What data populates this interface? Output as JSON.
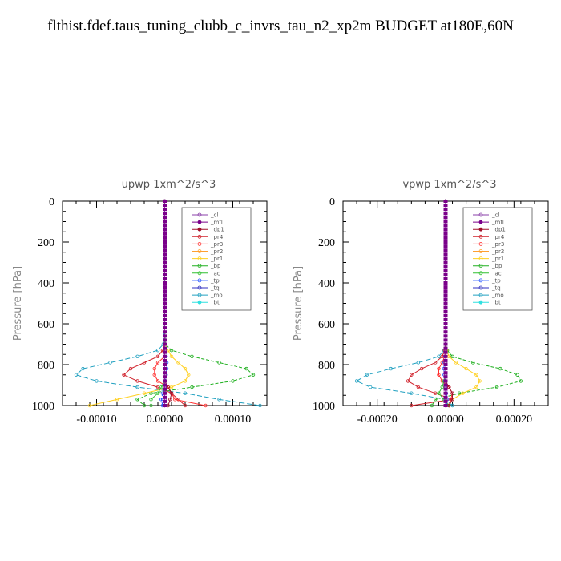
{
  "page": {
    "title": "flthist.fdef.taus_tuning_clubb_c_invrs_tau_n2_xp2m  BUDGET at180E,60N"
  },
  "legend": [
    {
      "name": "_cl",
      "color": "#8a3fa8",
      "marker": "x"
    },
    {
      "name": "_mfl",
      "color": "#7a008a",
      "marker": "dot"
    },
    {
      "name": "_dp1",
      "color": "#a0102a",
      "marker": "dot"
    },
    {
      "name": "_pr4",
      "color": "#d0202a",
      "marker": "o"
    },
    {
      "name": "_pr3",
      "color": "#ff3030",
      "marker": "v"
    },
    {
      "name": "_pr2",
      "color": "#ffa030",
      "marker": "^"
    },
    {
      "name": "_pr1",
      "color": "#ffd020",
      "marker": "o"
    },
    {
      "name": "_bp",
      "color": "#20b020",
      "marker": "x"
    },
    {
      "name": "_ac",
      "color": "#30c030",
      "marker": "o"
    },
    {
      "name": "_tp",
      "color": "#2050ff",
      "marker": "x"
    },
    {
      "name": "_tq",
      "color": "#3030c0",
      "marker": "+"
    },
    {
      "name": "_mo",
      "color": "#20a0c0",
      "marker": "-"
    },
    {
      "name": "_bt",
      "color": "#30e0e0",
      "marker": "dot"
    }
  ],
  "chart_data": [
    {
      "type": "line",
      "title": "upwp   1xm^2/s^3",
      "ylabel": "Pressure  [hPa]",
      "xlim": [
        -0.00015,
        0.00015
      ],
      "ylim": [
        1000,
        0
      ],
      "xticks": [
        -0.0001,
        0,
        0.0001
      ],
      "xtick_labels": [
        "-0.00010",
        "0.00000",
        "0.00010"
      ],
      "yticks": [
        0,
        200,
        400,
        600,
        800,
        1000
      ],
      "ytick_labels": [
        "0",
        "200",
        "400",
        "600",
        "800",
        "1000"
      ],
      "legend_position": "top-right",
      "y": [
        0,
        100,
        200,
        300,
        400,
        500,
        600,
        700,
        730,
        760,
        790,
        820,
        850,
        880,
        910,
        940,
        970,
        1000
      ],
      "series": [
        {
          "name": "_mo",
          "values": [
            0,
            0,
            0,
            0,
            0,
            0,
            0,
            -2e-06,
            -1e-05,
            -4e-05,
            -8e-05,
            -0.00012,
            -0.00013,
            -0.0001,
            -4e-05,
            3e-05,
            8e-05,
            0.00014
          ]
        },
        {
          "name": "_bp",
          "values": [
            0,
            0,
            0,
            0,
            0,
            0,
            0,
            1e-06,
            1e-05,
            4e-05,
            8e-05,
            0.00012,
            0.00013,
            0.0001,
            4e-05,
            -2e-05,
            -4e-05,
            -3e-05
          ]
        },
        {
          "name": "_pr1",
          "values": [
            0,
            0,
            0,
            0,
            0,
            0,
            0,
            0,
            5e-06,
            1e-05,
            2e-05,
            3e-05,
            3.5e-05,
            3e-05,
            1e-05,
            -3e-05,
            -7e-05,
            -0.00011
          ]
        },
        {
          "name": "_pr4",
          "values": [
            0,
            0,
            0,
            0,
            0,
            0,
            0,
            0,
            -3e-06,
            -1e-05,
            -3e-05,
            -5e-05,
            -6e-05,
            -4e-05,
            -1e-05,
            1e-05,
            2e-05,
            3e-05
          ]
        },
        {
          "name": "_pr3",
          "values": [
            0,
            0,
            0,
            0,
            0,
            0,
            0,
            0,
            0,
            0,
            -1e-05,
            -1.5e-05,
            -1.5e-05,
            -1e-05,
            5e-06,
            1e-05,
            1.5e-05,
            6e-05
          ]
        },
        {
          "name": "_ac",
          "values": [
            0,
            0,
            0,
            0,
            0,
            0,
            0,
            0,
            0,
            0,
            0,
            0,
            0,
            0,
            -5e-06,
            -1e-05,
            -2e-05,
            -2e-05
          ]
        },
        {
          "name": "_tp",
          "values": [
            0,
            0,
            0,
            0,
            0,
            0,
            0,
            0,
            0,
            2e-06,
            3e-06,
            3e-06,
            2e-06,
            1e-06,
            0,
            -3e-06,
            -5e-06,
            -3e-06
          ]
        },
        {
          "name": "_dp1",
          "values": [
            0,
            0,
            0,
            0,
            0,
            0,
            0,
            0,
            0,
            0,
            0,
            0,
            0,
            0,
            5e-06,
            1e-05,
            8e-06,
            5e-06
          ]
        },
        {
          "name": "_mfl",
          "values": [
            0,
            0,
            0,
            0,
            0,
            0,
            0,
            0,
            0,
            0,
            0,
            0,
            0,
            0,
            0,
            0,
            0,
            0
          ]
        },
        {
          "name": "_cl",
          "values": [
            0,
            0,
            0,
            0,
            0,
            0,
            0,
            0,
            0,
            0,
            0,
            0,
            0,
            0,
            0,
            0,
            0,
            0
          ]
        }
      ]
    },
    {
      "type": "line",
      "title": "vpwp   1xm^2/s^3",
      "ylabel": "Pressure  [hPa]",
      "xlim": [
        -0.0003,
        0.0003
      ],
      "ylim": [
        1000,
        0
      ],
      "xticks": [
        -0.0002,
        0,
        0.0002
      ],
      "xtick_labels": [
        "-0.00020",
        "0.00000",
        "0.00020"
      ],
      "yticks": [
        0,
        200,
        400,
        600,
        800,
        1000
      ],
      "ytick_labels": [
        "0",
        "200",
        "400",
        "600",
        "800",
        "1000"
      ],
      "legend_position": "top-right",
      "y": [
        0,
        100,
        200,
        300,
        400,
        500,
        600,
        700,
        730,
        760,
        790,
        820,
        850,
        880,
        910,
        940,
        970,
        1000
      ],
      "series": [
        {
          "name": "_mo",
          "values": [
            0,
            0,
            0,
            0,
            0,
            0,
            0,
            0,
            -5e-06,
            -2e-05,
            -8e-05,
            -0.00016,
            -0.00023,
            -0.00026,
            -0.00022,
            -0.0001,
            0,
            2e-05
          ]
        },
        {
          "name": "_bp",
          "values": [
            0,
            0,
            0,
            0,
            0,
            0,
            0,
            0,
            5e-06,
            2e-05,
            8e-05,
            0.00016,
            0.00021,
            0.00022,
            0.00015,
            4e-05,
            -3e-05,
            -4e-05
          ]
        },
        {
          "name": "_pr1",
          "values": [
            0,
            0,
            0,
            0,
            0,
            0,
            0,
            0,
            3e-06,
            1e-05,
            3e-05,
            6e-05,
            9e-05,
            0.0001,
            9e-05,
            5e-05,
            2e-05,
            1e-05
          ]
        },
        {
          "name": "_pr4",
          "values": [
            0,
            0,
            0,
            0,
            0,
            0,
            0,
            0,
            -3e-06,
            -1e-05,
            -3e-05,
            -7e-05,
            -0.0001,
            -0.00011,
            -8e-05,
            -3e-05,
            2e-05,
            -0.0001
          ]
        },
        {
          "name": "_pr3",
          "values": [
            0,
            0,
            0,
            0,
            0,
            0,
            0,
            0,
            0,
            -3e-06,
            -1e-05,
            -2e-05,
            -2e-05,
            -1e-05,
            1e-05,
            2e-05,
            1.5e-05,
            1e-05
          ]
        },
        {
          "name": "_ac",
          "values": [
            0,
            0,
            0,
            0,
            0,
            0,
            0,
            0,
            0,
            0,
            0,
            0,
            0,
            -5e-06,
            -1e-05,
            -2e-05,
            -5e-06,
            1e-05
          ]
        },
        {
          "name": "_tp",
          "values": [
            0,
            0,
            0,
            0,
            0,
            0,
            0,
            0,
            0,
            -2e-06,
            -4e-06,
            -5e-06,
            -4e-06,
            -2e-06,
            0,
            2e-06,
            5e-06,
            2e-06
          ]
        },
        {
          "name": "_dp1",
          "values": [
            0,
            0,
            0,
            0,
            0,
            0,
            0,
            0,
            0,
            0,
            0,
            0,
            0,
            0,
            1e-05,
            2e-05,
            2e-05,
            1e-05
          ]
        },
        {
          "name": "_mfl",
          "values": [
            0,
            0,
            0,
            0,
            0,
            0,
            0,
            0,
            0,
            0,
            0,
            0,
            0,
            0,
            0,
            0,
            0,
            0
          ]
        },
        {
          "name": "_cl",
          "values": [
            0,
            0,
            0,
            0,
            0,
            0,
            0,
            0,
            0,
            0,
            0,
            0,
            0,
            0,
            0,
            0,
            0,
            0
          ]
        }
      ]
    }
  ]
}
